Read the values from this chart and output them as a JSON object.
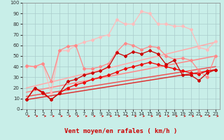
{
  "xlabel": "Vent moyen/en rafales ( km/h )",
  "xlim": [
    -0.5,
    23.5
  ],
  "ylim": [
    0,
    100
  ],
  "xtick_labels": [
    "0",
    "1",
    "2",
    "3",
    "4",
    "5",
    "6",
    "7",
    "8",
    "9",
    "10",
    "11",
    "12",
    "13",
    "14",
    "15",
    "16",
    "17",
    "18",
    "19",
    "20",
    "21",
    "22",
    "23"
  ],
  "xtick_pos": [
    0,
    1,
    2,
    3,
    4,
    5,
    6,
    7,
    8,
    9,
    10,
    11,
    12,
    13,
    14,
    15,
    16,
    17,
    18,
    19,
    20,
    21,
    22,
    23
  ],
  "yticks": [
    0,
    10,
    20,
    30,
    40,
    50,
    60,
    70,
    80,
    90,
    100
  ],
  "bg_color": "#c8eee8",
  "grid_color": "#aacccc",
  "arrow_color": "#cc0000",
  "lines": [
    {
      "x": [
        0,
        1,
        2,
        3,
        4,
        5,
        6,
        7,
        8,
        9,
        10,
        11,
        12,
        13,
        14,
        15,
        16,
        17,
        18,
        19,
        20,
        21,
        22,
        23
      ],
      "y": [
        9,
        20,
        15,
        9,
        15,
        20,
        23,
        25,
        28,
        30,
        32,
        35,
        38,
        40,
        42,
        44,
        42,
        40,
        38,
        36,
        34,
        33,
        36,
        37
      ],
      "color": "#ee0000",
      "lw": 0.9,
      "marker": "D",
      "ms": 2.0,
      "zorder": 5
    },
    {
      "x": [
        0,
        1,
        2,
        3,
        4,
        5,
        6,
        7,
        8,
        9,
        10,
        11,
        12,
        13,
        14,
        15,
        16,
        17,
        18,
        19,
        20,
        21,
        22,
        23
      ],
      "y": [
        9,
        20,
        16,
        9,
        15,
        26,
        28,
        32,
        34,
        36,
        40,
        53,
        50,
        54,
        52,
        55,
        52,
        42,
        46,
        32,
        32,
        27,
        34,
        37
      ],
      "color": "#cc0000",
      "lw": 0.9,
      "marker": "D",
      "ms": 2.0,
      "zorder": 5
    },
    {
      "x": [
        0,
        1,
        2,
        3,
        4,
        5,
        6,
        7,
        8,
        9,
        10,
        11,
        12,
        13,
        14,
        15,
        16,
        17,
        18,
        19,
        20,
        21,
        22,
        23
      ],
      "y": [
        41,
        40,
        43,
        26,
        55,
        59,
        60,
        38,
        38,
        40,
        43,
        54,
        62,
        60,
        56,
        59,
        58,
        50,
        47,
        48,
        46,
        36,
        30,
        50
      ],
      "color": "#ff8888",
      "lw": 0.9,
      "marker": "D",
      "ms": 2.0,
      "zorder": 4
    },
    {
      "x": [
        0,
        1,
        2,
        3,
        4,
        5,
        6,
        7,
        8,
        9,
        10,
        11,
        12,
        13,
        14,
        15,
        16,
        17,
        18,
        19,
        20,
        21,
        22,
        23
      ],
      "y": [
        40,
        40,
        43,
        15,
        55,
        55,
        60,
        63,
        65,
        68,
        70,
        84,
        80,
        80,
        92,
        90,
        80,
        80,
        78,
        78,
        75,
        58,
        56,
        64
      ],
      "color": "#ffbbbb",
      "lw": 0.9,
      "marker": "D",
      "ms": 2.0,
      "zorder": 3
    },
    {
      "x": [
        0,
        23
      ],
      "y": [
        9,
        37
      ],
      "color": "#dd3333",
      "lw": 1.1,
      "marker": null,
      "ms": 0,
      "zorder": 2
    },
    {
      "x": [
        0,
        23
      ],
      "y": [
        12,
        40
      ],
      "color": "#ee5555",
      "lw": 1.1,
      "marker": null,
      "ms": 0,
      "zorder": 2
    },
    {
      "x": [
        0,
        23
      ],
      "y": [
        16,
        50
      ],
      "color": "#ff8888",
      "lw": 1.1,
      "marker": null,
      "ms": 0,
      "zorder": 2
    },
    {
      "x": [
        0,
        23
      ],
      "y": [
        20,
        63
      ],
      "color": "#ffaaaa",
      "lw": 1.1,
      "marker": null,
      "ms": 0,
      "zorder": 2
    }
  ]
}
